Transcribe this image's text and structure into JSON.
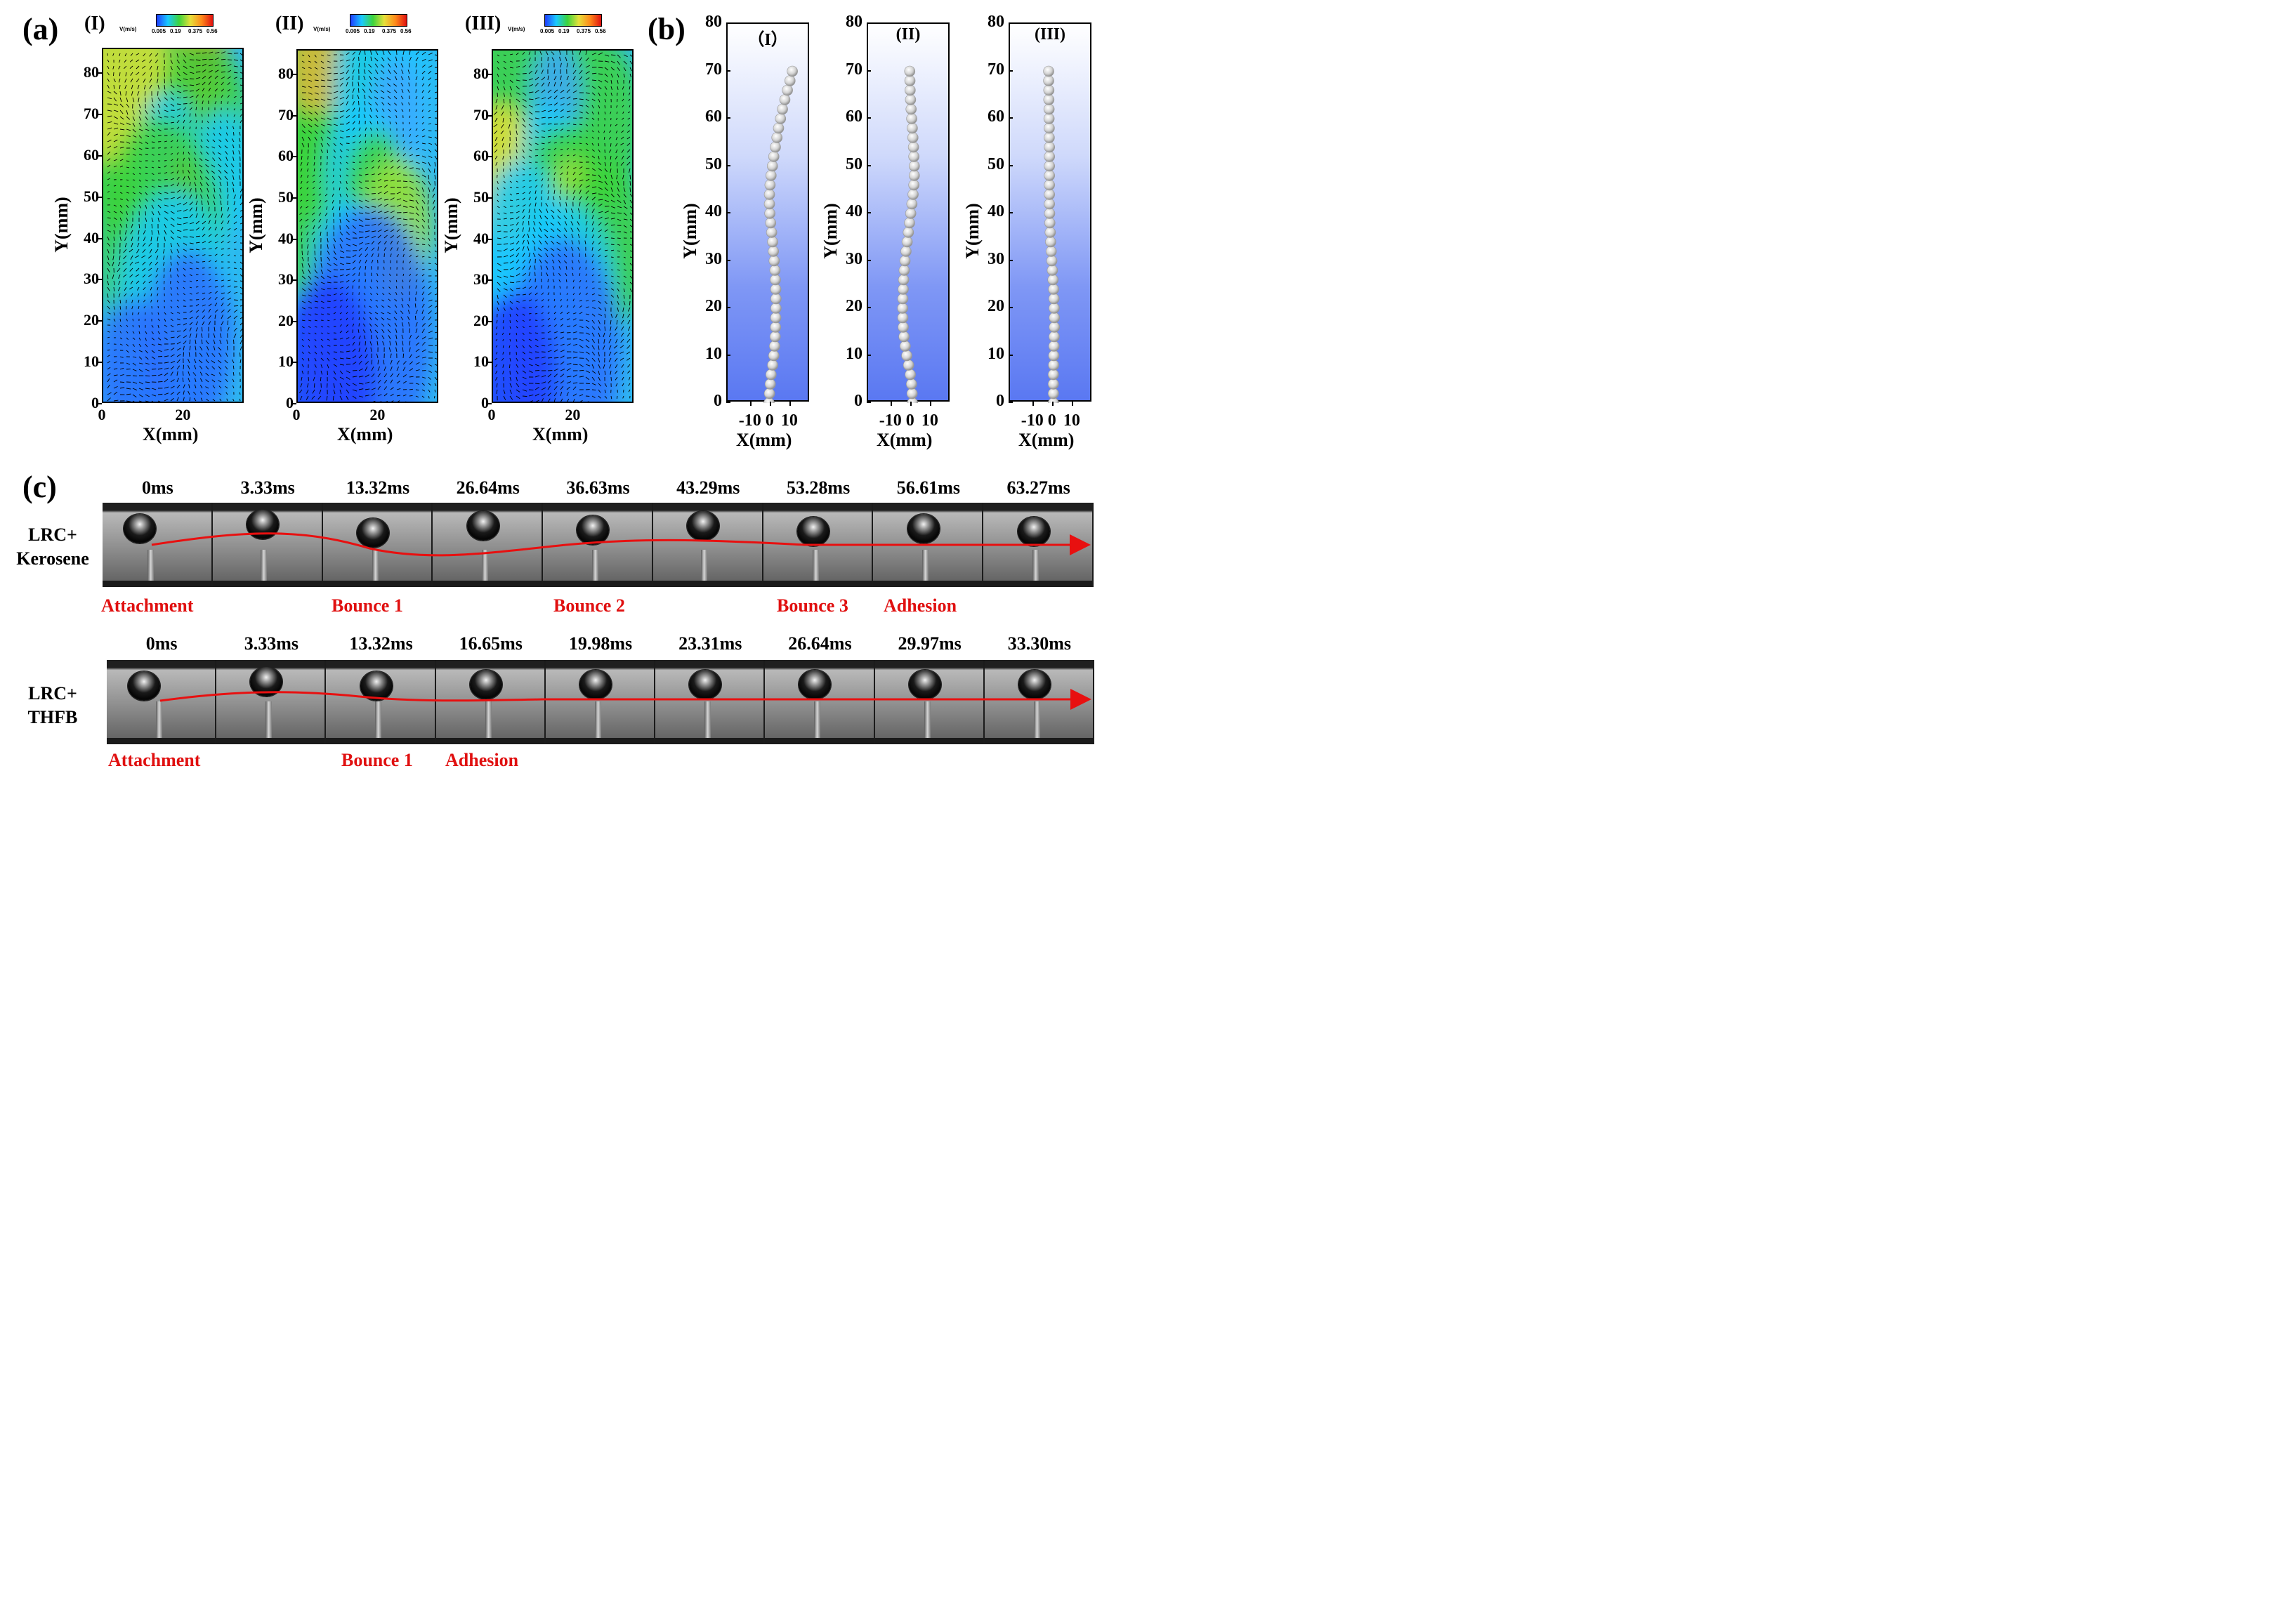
{
  "panel_a": {
    "label": "(a)",
    "subpanels": [
      {
        "roman": "(I)"
      },
      {
        "roman": "(II)"
      },
      {
        "roman": "(III)"
      }
    ],
    "colorbar": {
      "title": "V(m/s)",
      "ticks": [
        "0.005",
        "0.19",
        "0.375",
        "0.56"
      ],
      "colors": [
        "#1f3cff",
        "#19c9ff",
        "#3cd43c",
        "#e6e03a",
        "#ff8a1a",
        "#e01010"
      ]
    },
    "x_axis": {
      "title": "X(mm)",
      "ticks": [
        "0",
        "20"
      ]
    },
    "y_axis": {
      "title": "Y(mm)",
      "ticks": [
        "0",
        "10",
        "20",
        "30",
        "40",
        "50",
        "60",
        "70",
        "80"
      ]
    }
  },
  "panel_b": {
    "label": "(b)",
    "subpanels": [
      {
        "roman": "（I）"
      },
      {
        "roman": "(II)"
      },
      {
        "roman": "(III)"
      }
    ],
    "x_axis": {
      "title": "X(mm)",
      "ticks": [
        "-10",
        "0",
        "10"
      ]
    },
    "y_axis": {
      "title": "Y(mm)",
      "ticks": [
        "0",
        "10",
        "20",
        "30",
        "40",
        "50",
        "60",
        "70",
        "80"
      ]
    }
  },
  "chart_data": [
    {
      "type": "scatter",
      "title": "（I）",
      "xlabel": "X(mm)",
      "ylabel": "Y(mm)",
      "xlim": [
        -20,
        20
      ],
      "ylim": [
        0,
        80
      ],
      "points": [
        [
          -1,
          0
        ],
        [
          -0.8,
          2
        ],
        [
          -0.4,
          4
        ],
        [
          0,
          6
        ],
        [
          0.8,
          8
        ],
        [
          1.4,
          10
        ],
        [
          1.8,
          12
        ],
        [
          2.1,
          14
        ],
        [
          2.3,
          16
        ],
        [
          2.4,
          18
        ],
        [
          2.5,
          20
        ],
        [
          2.5,
          22
        ],
        [
          2.4,
          24
        ],
        [
          2.2,
          26
        ],
        [
          2,
          28
        ],
        [
          1.6,
          30
        ],
        [
          1.2,
          32
        ],
        [
          0.8,
          34
        ],
        [
          0.3,
          36
        ],
        [
          -0.2,
          38
        ],
        [
          -0.6,
          40
        ],
        [
          -0.8,
          42
        ],
        [
          -0.8,
          44
        ],
        [
          -0.5,
          46
        ],
        [
          0,
          48
        ],
        [
          0.7,
          50
        ],
        [
          1.4,
          52
        ],
        [
          2.2,
          54
        ],
        [
          3,
          56
        ],
        [
          3.8,
          58
        ],
        [
          4.8,
          60
        ],
        [
          5.8,
          62
        ],
        [
          7,
          64
        ],
        [
          8.3,
          66
        ],
        [
          9.6,
          68
        ],
        [
          10.8,
          70
        ]
      ]
    },
    {
      "type": "scatter",
      "title": "(II)",
      "xlabel": "X(mm)",
      "ylabel": "Y(mm)",
      "xlim": [
        -20,
        20
      ],
      "ylim": [
        0,
        80
      ],
      "points": [
        [
          0.5,
          0
        ],
        [
          0.3,
          2
        ],
        [
          0,
          4
        ],
        [
          -0.6,
          6
        ],
        [
          -1.5,
          8
        ],
        [
          -2.4,
          10
        ],
        [
          -3.2,
          12
        ],
        [
          -3.8,
          14
        ],
        [
          -4.2,
          16
        ],
        [
          -4.4,
          18
        ],
        [
          -4.5,
          20
        ],
        [
          -4.4,
          22
        ],
        [
          -4.2,
          24
        ],
        [
          -4,
          26
        ],
        [
          -3.7,
          28
        ],
        [
          -3.3,
          30
        ],
        [
          -2.8,
          32
        ],
        [
          -2.2,
          34
        ],
        [
          -1.6,
          36
        ],
        [
          -1,
          38
        ],
        [
          -0.4,
          40
        ],
        [
          0.2,
          42
        ],
        [
          0.8,
          44
        ],
        [
          1.2,
          46
        ],
        [
          1.4,
          48
        ],
        [
          1.4,
          50
        ],
        [
          1.2,
          52
        ],
        [
          1,
          54
        ],
        [
          0.7,
          56
        ],
        [
          0.4,
          58
        ],
        [
          0.1,
          60
        ],
        [
          -0.2,
          62
        ],
        [
          -0.5,
          64
        ],
        [
          -0.7,
          66
        ],
        [
          -0.8,
          68
        ],
        [
          -0.9,
          70
        ]
      ]
    },
    {
      "type": "scatter",
      "title": "(III)",
      "xlabel": "X(mm)",
      "ylabel": "Y(mm)",
      "xlim": [
        -20,
        20
      ],
      "ylim": [
        0,
        80
      ],
      "points": [
        [
          0,
          0
        ],
        [
          0,
          2
        ],
        [
          0,
          4
        ],
        [
          0,
          6
        ],
        [
          0.1,
          8
        ],
        [
          0.2,
          10
        ],
        [
          0.3,
          12
        ],
        [
          0.4,
          14
        ],
        [
          0.5,
          16
        ],
        [
          0.5,
          18
        ],
        [
          0.4,
          20
        ],
        [
          0.3,
          22
        ],
        [
          0.1,
          24
        ],
        [
          -0.2,
          26
        ],
        [
          -0.5,
          28
        ],
        [
          -0.8,
          30
        ],
        [
          -1.1,
          32
        ],
        [
          -1.4,
          34
        ],
        [
          -1.6,
          36
        ],
        [
          -1.8,
          38
        ],
        [
          -1.9,
          40
        ],
        [
          -2,
          42
        ],
        [
          -2,
          44
        ],
        [
          -2,
          46
        ],
        [
          -2,
          48
        ],
        [
          -2,
          50
        ],
        [
          -2,
          52
        ],
        [
          -2,
          54
        ],
        [
          -2.1,
          56
        ],
        [
          -2.1,
          58
        ],
        [
          -2.2,
          60
        ],
        [
          -2.2,
          62
        ],
        [
          -2.3,
          64
        ],
        [
          -2.3,
          66
        ],
        [
          -2.4,
          68
        ],
        [
          -2.4,
          70
        ]
      ]
    }
  ],
  "panel_c": {
    "label": "(c)",
    "rows": [
      {
        "label_line1": "LRC+",
        "label_line2": "Kerosene",
        "times": [
          "0ms",
          "3.33ms",
          "13.32ms",
          "26.64ms",
          "36.63ms",
          "43.29ms",
          "53.28ms",
          "56.61ms",
          "63.27ms"
        ],
        "events": [
          "Attachment",
          "Bounce 1",
          "Bounce 2",
          "Bounce 3",
          "Adhesion"
        ]
      },
      {
        "label_line1": "LRC+",
        "label_line2": "THFB",
        "times": [
          "0ms",
          "3.33ms",
          "13.32ms",
          "16.65ms",
          "19.98ms",
          "23.31ms",
          "26.64ms",
          "29.97ms",
          "33.30ms"
        ],
        "events": [
          "Attachment",
          "Bounce 1",
          "Adhesion"
        ]
      }
    ],
    "arrow_color": "#e81010",
    "event_color": "#e01010"
  }
}
